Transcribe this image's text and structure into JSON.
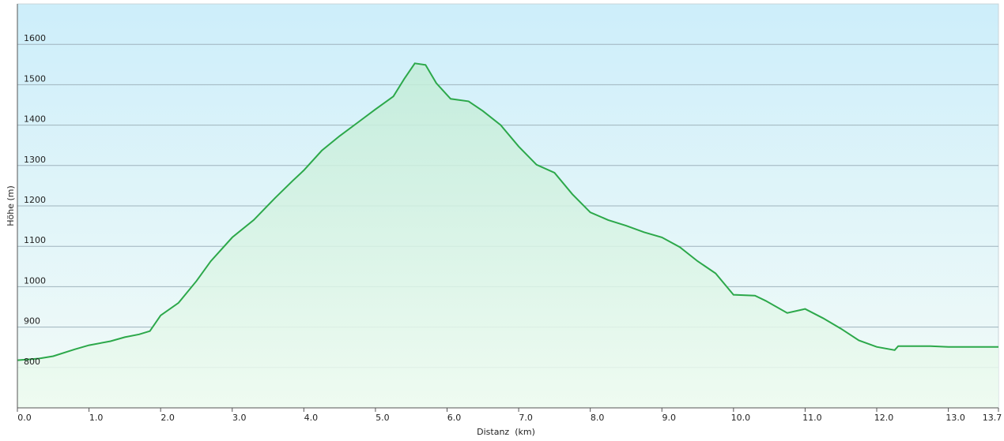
{
  "chart_data": {
    "type": "area-line",
    "x_label": "Distanz  (km)",
    "y_label": "Höhe (m)",
    "x": [
      0,
      0.3,
      0.5,
      0.8,
      1.0,
      1.3,
      1.5,
      1.7,
      1.85,
      2.0,
      2.25,
      2.5,
      2.7,
      3.0,
      3.3,
      3.6,
      3.85,
      4.0,
      4.25,
      4.5,
      4.75,
      5.0,
      5.25,
      5.4,
      5.55,
      5.7,
      5.85,
      6.05,
      6.3,
      6.5,
      6.75,
      7.0,
      7.25,
      7.5,
      7.75,
      8.0,
      8.25,
      8.5,
      8.75,
      9.0,
      9.25,
      9.5,
      9.75,
      10.0,
      10.3,
      10.45,
      10.75,
      11.0,
      11.25,
      11.5,
      11.75,
      12.0,
      12.25,
      12.3,
      12.75,
      13.0,
      13.7
    ],
    "series": [
      {
        "color": "#2ca84a",
        "values": [
          818,
          822,
          828,
          845,
          855,
          865,
          875,
          882,
          890,
          929,
          960,
          1014,
          1063,
          1122,
          1165,
          1220,
          1263,
          1288,
          1337,
          1373,
          1406,
          1439,
          1471,
          1514,
          1553,
          1549,
          1504,
          1465,
          1459,
          1435,
          1400,
          1347,
          1302,
          1282,
          1229,
          1184,
          1165,
          1151,
          1135,
          1122,
          1098,
          1063,
          1033,
          980,
          978,
          965,
          935,
          945,
          922,
          896,
          867,
          851,
          843,
          853,
          853,
          851,
          851
        ]
      }
    ],
    "xlim": [
      0,
      13.7
    ],
    "xticks": [
      {
        "value": 0,
        "label": "0.0"
      },
      {
        "value": 1,
        "label": "1.0"
      },
      {
        "value": 2,
        "label": "2.0"
      },
      {
        "value": 3,
        "label": "3.0"
      },
      {
        "value": 4,
        "label": "4.0"
      },
      {
        "value": 5,
        "label": "5.0"
      },
      {
        "value": 6,
        "label": "6.0"
      },
      {
        "value": 7,
        "label": "7.0"
      },
      {
        "value": 8,
        "label": "8.0"
      },
      {
        "value": 9,
        "label": "9.0"
      },
      {
        "value": 10,
        "label": "10.0"
      },
      {
        "value": 11,
        "label": "11.0"
      },
      {
        "value": 12,
        "label": "12.0"
      },
      {
        "value": 13,
        "label": "13.0"
      },
      13.7
    ],
    "ylim": [
      700,
      1700
    ],
    "yticks": [
      800,
      900,
      1000,
      1100,
      1200,
      1300,
      1400,
      1500,
      1600
    ],
    "grid": true
  }
}
